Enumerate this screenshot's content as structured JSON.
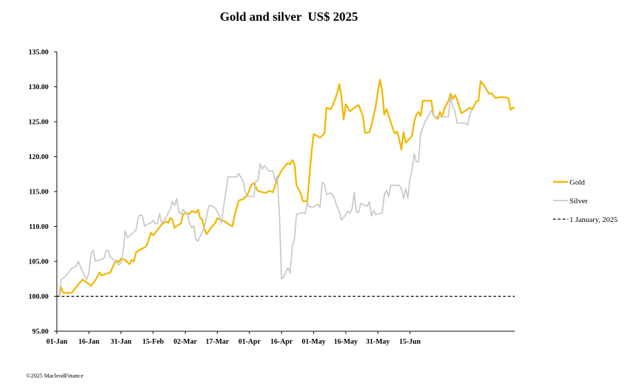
{
  "chart_data": {
    "type": "line",
    "title": "Gold and silver  US$ 2025",
    "xlabel": "",
    "ylabel": "",
    "ylim": [
      95,
      135
    ],
    "y_ticks": [
      "95.00",
      "100.00",
      "105.00",
      "110.00",
      "115.00",
      "120.00",
      "125.00",
      "130.00",
      "135.00"
    ],
    "x_ticks": [
      "01-Jan",
      "16-Jan",
      "31-Jan",
      "15-Feb",
      "02-Mar",
      "17-Mar",
      "01-Apr",
      "16-Apr",
      "01-May",
      "16-May",
      "31-May",
      "15-Jun"
    ],
    "grid": false,
    "legend_position": "right",
    "series": [
      {
        "name": "Gold",
        "color": "#f2b800",
        "values": [
          [
            1,
            100.0
          ],
          [
            2,
            101.3
          ],
          [
            3,
            100.5
          ],
          [
            5,
            100.5
          ],
          [
            7,
            100.5
          ],
          [
            9,
            101.3
          ],
          [
            12,
            102.4
          ],
          [
            14,
            102.0
          ],
          [
            16,
            101.5
          ],
          [
            18,
            102.3
          ],
          [
            20,
            103.4
          ],
          [
            21,
            103.0
          ],
          [
            23,
            103.2
          ],
          [
            25,
            103.4
          ],
          [
            27,
            104.8
          ],
          [
            28,
            105.1
          ],
          [
            29,
            104.9
          ],
          [
            30,
            105.4
          ],
          [
            32,
            105.2
          ],
          [
            34,
            104.6
          ],
          [
            35,
            105.2
          ],
          [
            36,
            105.0
          ],
          [
            37,
            106.3
          ],
          [
            39,
            106.7
          ],
          [
            41,
            107.0
          ],
          [
            42,
            107.3
          ],
          [
            44,
            109.1
          ],
          [
            45,
            108.7
          ],
          [
            46,
            109.1
          ],
          [
            47,
            109.5
          ],
          [
            49,
            110.3
          ],
          [
            51,
            110.7
          ],
          [
            52,
            110.5
          ],
          [
            53,
            111.2
          ],
          [
            54,
            111.0
          ],
          [
            55,
            109.8
          ],
          [
            57,
            110.3
          ],
          [
            58,
            110.4
          ],
          [
            59,
            111.8
          ],
          [
            61,
            111.9
          ],
          [
            62,
            111.8
          ],
          [
            63,
            112.2
          ],
          [
            65,
            112.0
          ],
          [
            66,
            112.4
          ],
          [
            67,
            111.2
          ],
          [
            68,
            111.0
          ],
          [
            69,
            109.6
          ],
          [
            70,
            108.9
          ],
          [
            72,
            109.8
          ],
          [
            74,
            110.5
          ],
          [
            75,
            111.2
          ],
          [
            76,
            111.0
          ],
          [
            78,
            110.8
          ],
          [
            80,
            110.4
          ],
          [
            82,
            110.0
          ],
          [
            83,
            111.5
          ],
          [
            85,
            113.7
          ],
          [
            87,
            113.9
          ],
          [
            89,
            114.5
          ],
          [
            91,
            116.0
          ],
          [
            92,
            116.2
          ],
          [
            94,
            115.1
          ],
          [
            96,
            114.9
          ],
          [
            98,
            114.8
          ],
          [
            99,
            115.1
          ],
          [
            101,
            114.9
          ],
          [
            103,
            116.8
          ],
          [
            105,
            118.0
          ],
          [
            107,
            118.8
          ],
          [
            108,
            119.1
          ],
          [
            109,
            118.9
          ],
          [
            110,
            119.5
          ],
          [
            111,
            119.0
          ],
          [
            112,
            115.9
          ],
          [
            114,
            114.7
          ],
          [
            115,
            113.6
          ],
          [
            117,
            113.6
          ],
          [
            119,
            120.6
          ],
          [
            120,
            123.2
          ],
          [
            121,
            123.1
          ],
          [
            123,
            122.7
          ],
          [
            125,
            123.3
          ],
          [
            126,
            127.0
          ],
          [
            128,
            126.8
          ],
          [
            129,
            127.4
          ],
          [
            131,
            129.1
          ],
          [
            132,
            130.4
          ],
          [
            133,
            128.5
          ],
          [
            134,
            125.3
          ],
          [
            135,
            127.5
          ],
          [
            137,
            126.5
          ],
          [
            139,
            127.0
          ],
          [
            141,
            127.4
          ],
          [
            142,
            126.6
          ],
          [
            143,
            125.8
          ],
          [
            144,
            123.4
          ],
          [
            146,
            123.5
          ],
          [
            147,
            124.5
          ],
          [
            149,
            127.2
          ],
          [
            150,
            129.3
          ],
          [
            151,
            131.0
          ],
          [
            152,
            129.5
          ],
          [
            153,
            126.0
          ],
          [
            154,
            126.8
          ],
          [
            156,
            125.0
          ],
          [
            157,
            124.0
          ],
          [
            158,
            123.3
          ],
          [
            159,
            123.6
          ],
          [
            160,
            122.5
          ],
          [
            161,
            121.0
          ],
          [
            162,
            123.5
          ],
          [
            163,
            122.0
          ],
          [
            165,
            122.6
          ],
          [
            166,
            123.0
          ],
          [
            167,
            125.0
          ],
          [
            168,
            126.0
          ],
          [
            169,
            126.4
          ],
          [
            170,
            125.8
          ],
          [
            171,
            128.0
          ],
          [
            173,
            128.0
          ],
          [
            175,
            128.0
          ],
          [
            176,
            125.9
          ],
          [
            178,
            125.4
          ],
          [
            179,
            126.4
          ],
          [
            180,
            125.7
          ],
          [
            181,
            126.8
          ],
          [
            183,
            128.0
          ],
          [
            184,
            129.0
          ],
          [
            185,
            128.3
          ],
          [
            186,
            128.8
          ],
          [
            187,
            128.2
          ],
          [
            189,
            126.2
          ],
          [
            191,
            126.6
          ],
          [
            193,
            127.0
          ],
          [
            194,
            126.7
          ],
          [
            196,
            127.9
          ],
          [
            197,
            128.0
          ],
          [
            198,
            130.8
          ],
          [
            200,
            130.0
          ],
          [
            202,
            129.0
          ],
          [
            203,
            129.1
          ],
          [
            205,
            128.4
          ],
          [
            207,
            128.5
          ],
          [
            209,
            128.5
          ],
          [
            211,
            128.4
          ],
          [
            212,
            126.7
          ],
          [
            213,
            127.0
          ],
          [
            214,
            126.9
          ]
        ]
      },
      {
        "name": "Silver",
        "color": "#c8c8c8",
        "values": [
          [
            1,
            100.0
          ],
          [
            2,
            102.4
          ],
          [
            3,
            102.6
          ],
          [
            5,
            103.2
          ],
          [
            7,
            104.0
          ],
          [
            9,
            104.3
          ],
          [
            10,
            105.0
          ],
          [
            12,
            103.6
          ],
          [
            13,
            102.8
          ],
          [
            14,
            102.4
          ],
          [
            15,
            103.4
          ],
          [
            16,
            106.1
          ],
          [
            17,
            106.6
          ],
          [
            18,
            105.0
          ],
          [
            20,
            105.2
          ],
          [
            22,
            105.4
          ],
          [
            23,
            106.5
          ],
          [
            24,
            106.6
          ],
          [
            25,
            105.6
          ],
          [
            26,
            105.4
          ],
          [
            28,
            104.8
          ],
          [
            29,
            104.5
          ],
          [
            30,
            104.8
          ],
          [
            31,
            106.5
          ],
          [
            32,
            109.4
          ],
          [
            33,
            108.4
          ],
          [
            35,
            108.9
          ],
          [
            37,
            109.5
          ],
          [
            38,
            111.3
          ],
          [
            39,
            111.7
          ],
          [
            40,
            111.5
          ],
          [
            41,
            110.0
          ],
          [
            42,
            110.3
          ],
          [
            44,
            110.5
          ],
          [
            45,
            110.9
          ],
          [
            46,
            110.4
          ],
          [
            47,
            110.4
          ],
          [
            48,
            111.8
          ],
          [
            49,
            110.4
          ],
          [
            50,
            110.8
          ],
          [
            52,
            111.9
          ],
          [
            53,
            112.5
          ],
          [
            54,
            113.6
          ],
          [
            55,
            113.0
          ],
          [
            56,
            114.0
          ],
          [
            57,
            112.0
          ],
          [
            58,
            111.8
          ],
          [
            59,
            112.4
          ],
          [
            61,
            111.8
          ],
          [
            62,
            110.5
          ],
          [
            63,
            109.8
          ],
          [
            64,
            110.1
          ],
          [
            65,
            108.1
          ],
          [
            66,
            107.9
          ],
          [
            67,
            108.6
          ],
          [
            69,
            109.9
          ],
          [
            71,
            112.9
          ],
          [
            72,
            113.0
          ],
          [
            74,
            112.6
          ],
          [
            75,
            112.1
          ],
          [
            76,
            111.5
          ],
          [
            77,
            110.5
          ],
          [
            78,
            113.0
          ],
          [
            79,
            115.0
          ],
          [
            80,
            117.1
          ],
          [
            82,
            117.1
          ],
          [
            84,
            117.1
          ],
          [
            85,
            117.6
          ],
          [
            86,
            117.0
          ],
          [
            87,
            116.6
          ],
          [
            88,
            115.0
          ],
          [
            89,
            114.3
          ],
          [
            91,
            114.3
          ],
          [
            92,
            114.3
          ],
          [
            93,
            116.5
          ],
          [
            94,
            116.6
          ],
          [
            95,
            119.0
          ],
          [
            96,
            118.2
          ],
          [
            97,
            118.7
          ],
          [
            99,
            118.0
          ],
          [
            101,
            117.9
          ],
          [
            102,
            116.5
          ],
          [
            103,
            117.2
          ],
          [
            104,
            112.0
          ],
          [
            105,
            102.5
          ],
          [
            106,
            102.8
          ],
          [
            107,
            103.5
          ],
          [
            108,
            104.1
          ],
          [
            109,
            103.3
          ],
          [
            110,
            107.3
          ],
          [
            111,
            108.1
          ],
          [
            112,
            111.8
          ],
          [
            113,
            111.8
          ],
          [
            115,
            112.0
          ],
          [
            116,
            111.8
          ],
          [
            117,
            113.4
          ],
          [
            118,
            112.8
          ],
          [
            120,
            112.8
          ],
          [
            122,
            113.2
          ],
          [
            123,
            112.7
          ],
          [
            124,
            116.3
          ],
          [
            125,
            116.1
          ],
          [
            126,
            114.6
          ],
          [
            128,
            114.8
          ],
          [
            129,
            114.5
          ],
          [
            131,
            112.8
          ],
          [
            132,
            112.1
          ],
          [
            133,
            110.9
          ],
          [
            135,
            111.7
          ],
          [
            136,
            112.2
          ],
          [
            137,
            111.9
          ],
          [
            138,
            112.6
          ],
          [
            139,
            114.9
          ],
          [
            140,
            112.0
          ],
          [
            141,
            112.0
          ],
          [
            142,
            113.3
          ],
          [
            144,
            113.0
          ],
          [
            145,
            112.9
          ],
          [
            146,
            113.5
          ],
          [
            147,
            111.5
          ],
          [
            148,
            112.3
          ],
          [
            149,
            111.7
          ],
          [
            151,
            111.9
          ],
          [
            152,
            111.9
          ],
          [
            153,
            114.5
          ],
          [
            154,
            115.2
          ],
          [
            155,
            114.3
          ],
          [
            156,
            115.9
          ],
          [
            158,
            115.9
          ],
          [
            160,
            115.9
          ],
          [
            161,
            115.4
          ],
          [
            162,
            114.0
          ],
          [
            163,
            115.4
          ],
          [
            164,
            114.0
          ],
          [
            165,
            116.8
          ],
          [
            166,
            118.1
          ],
          [
            167,
            120.4
          ],
          [
            168,
            119.3
          ],
          [
            169,
            119.2
          ],
          [
            170,
            123.3
          ],
          [
            172,
            125.0
          ],
          [
            174,
            126.0
          ],
          [
            175,
            126.6
          ],
          [
            176,
            126.0
          ],
          [
            177,
            125.5
          ],
          [
            178,
            125.8
          ],
          [
            180,
            125.7
          ],
          [
            182,
            125.7
          ],
          [
            183,
            125.7
          ],
          [
            184,
            128.6
          ],
          [
            185,
            127.1
          ],
          [
            186,
            126.6
          ],
          [
            187,
            124.8
          ],
          [
            189,
            124.8
          ],
          [
            191,
            124.8
          ],
          [
            192,
            124.5
          ],
          [
            193,
            126.0
          ],
          [
            194,
            126.8
          ]
        ]
      },
      {
        "name": "1 January, 2025",
        "color": "#000000",
        "dashed": true,
        "values": [
          [
            0,
            100.0
          ],
          [
            214,
            100.0
          ]
        ]
      }
    ]
  },
  "legend": [
    {
      "label": "Gold",
      "color": "#f2b800",
      "style": "solid"
    },
    {
      "label": "Silver",
      "color": "#c8c8c8",
      "style": "solid"
    },
    {
      "label": "1 January, 2025",
      "color": "#000000",
      "style": "dashed"
    }
  ],
  "footer": {
    "copyright": "©2025 MacleodFinance"
  }
}
